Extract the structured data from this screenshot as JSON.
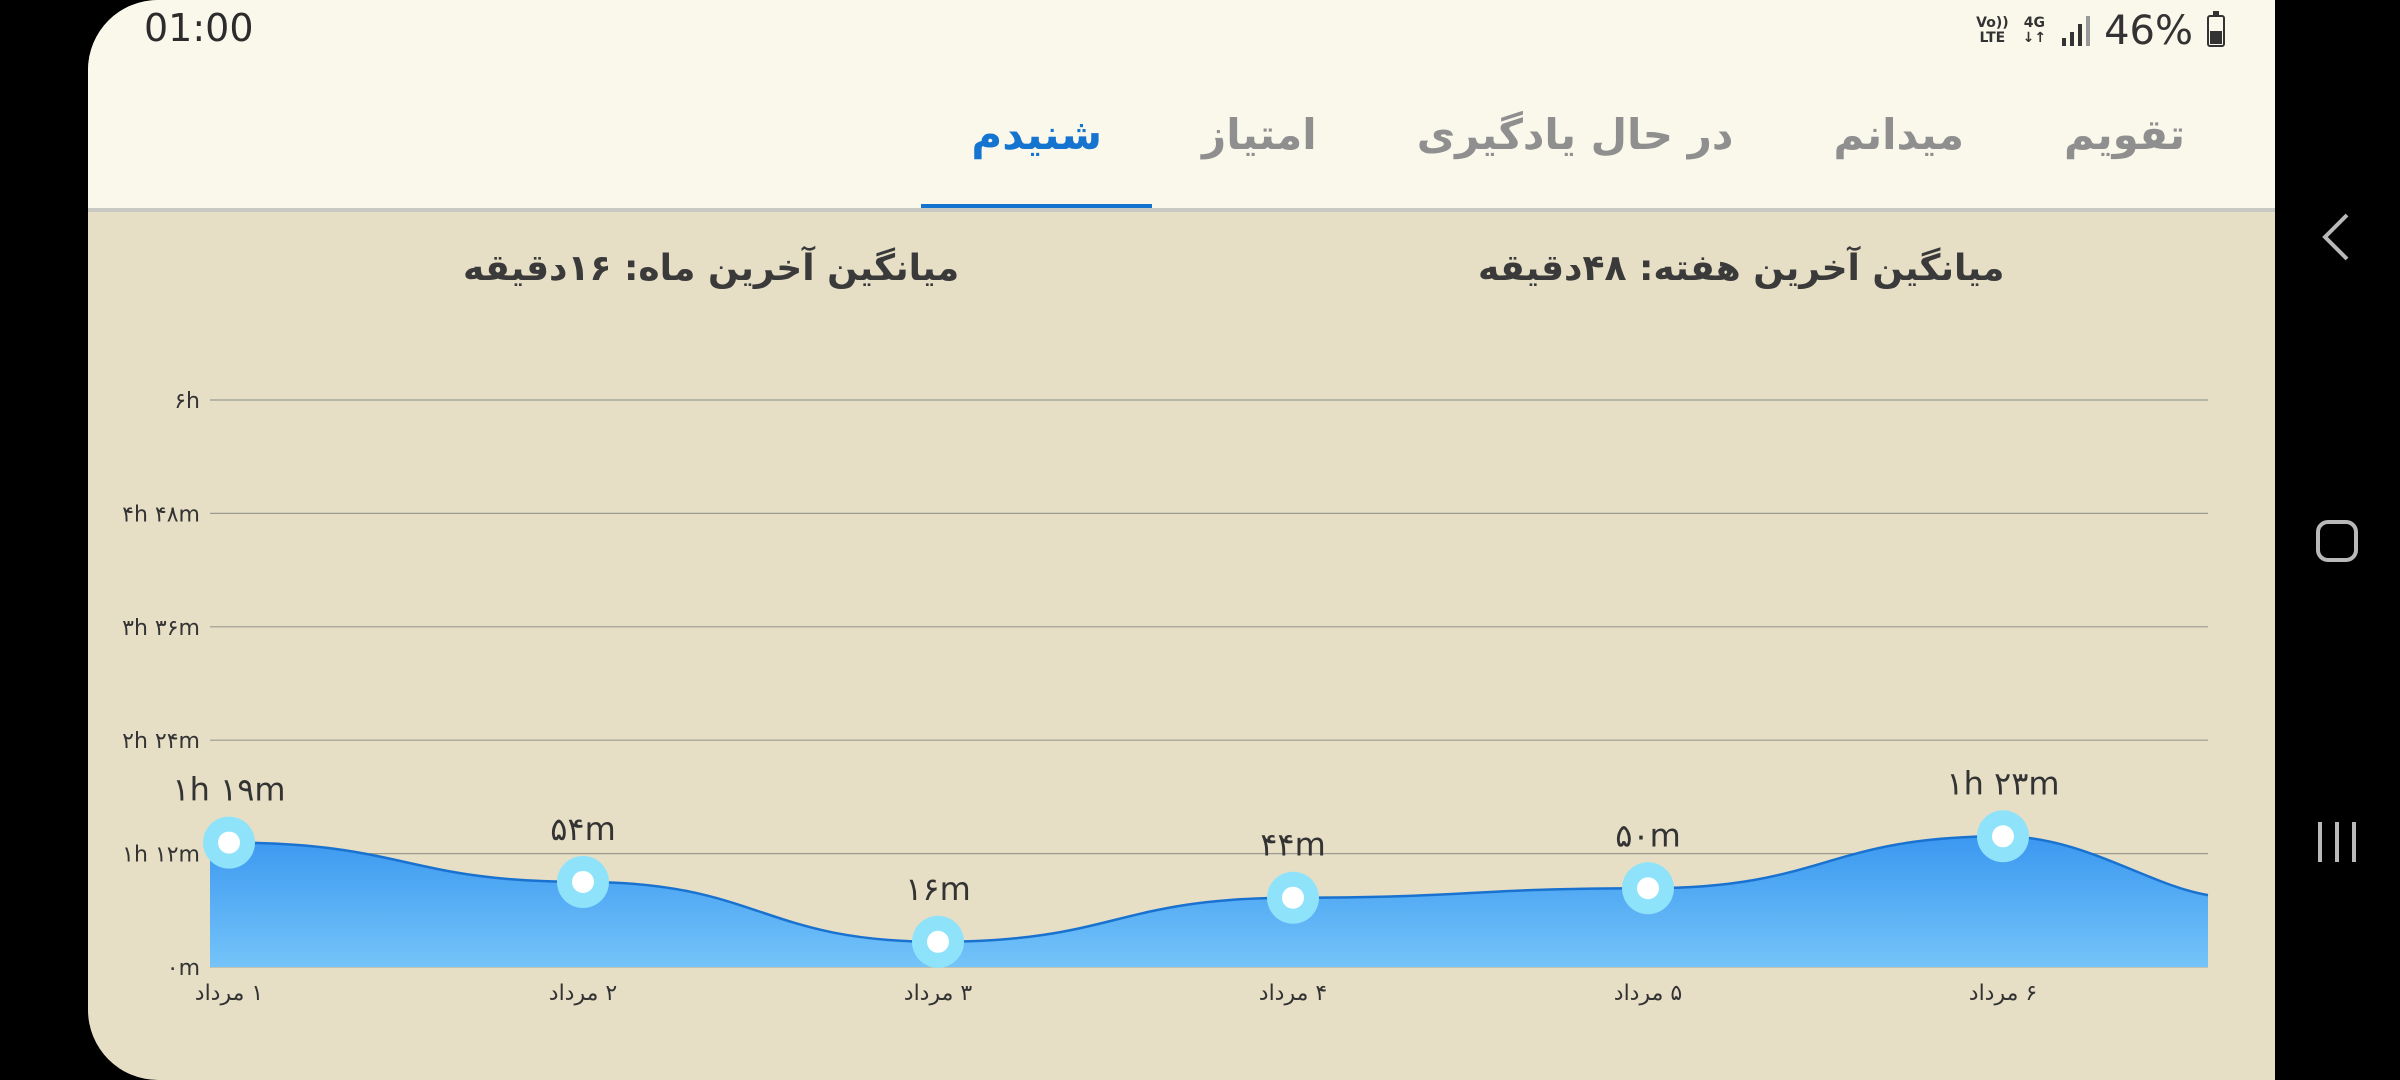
{
  "status": {
    "time": "01:00",
    "network_top": "Vo))",
    "network_bottom": "LTE",
    "gen_top": "4G",
    "gen_bottom": "↓↑",
    "battery": "46%"
  },
  "tabs": [
    {
      "label": "تقویم",
      "active": false
    },
    {
      "label": "میدانم",
      "active": false
    },
    {
      "label": "در حال یادگیری",
      "active": false
    },
    {
      "label": "امتیاز",
      "active": false
    },
    {
      "label": "شنیدم",
      "active": true
    }
  ],
  "summary": {
    "week": "میانگین آخرین هفته: ۴۸دقیقه",
    "month": "میانگین آخرین ماه: ۱۶دقیقه"
  },
  "chart_data": {
    "type": "area",
    "y_ticks": [
      "۰m",
      "۱h ۱۲m",
      "۲h ۲۴m",
      "۳h ۳۶m",
      "۴h ۴۸m",
      "۶h"
    ],
    "ylim": [
      0,
      360
    ],
    "categories": [
      "۱ مرداد",
      "۲ مرداد",
      "۳ مرداد",
      "۴ مرداد",
      "۵ مرداد",
      "۶ مرداد"
    ],
    "values": [
      79,
      54,
      16,
      44,
      50,
      83
    ],
    "value_labels": [
      "۱h ۱۹m",
      "۵۴m",
      "۱۶m",
      "۴۴m",
      "۵۰m",
      "۱h ۲۳m"
    ],
    "grid": true,
    "colors": {
      "fill_top": "#3b98f0",
      "fill_bottom": "#74c4f9",
      "line": "#1a72d0",
      "marker": "#8ee3fb"
    }
  }
}
